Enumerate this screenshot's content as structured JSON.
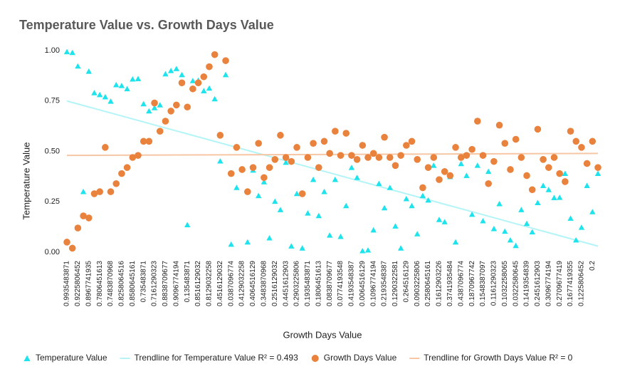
{
  "chart_data": {
    "type": "scatter",
    "title": "Temperature Value vs. Growth Days Value",
    "x_label": "Growth Days Value",
    "y_label": "Temperature Value",
    "categories": [
      "0.9935483871",
      null,
      "0.9225806452",
      null,
      "0.8967741935",
      null,
      "0.7806451613",
      null,
      "0.7483870968",
      null,
      "0.8258064516",
      null,
      "0.8580645161",
      null,
      "0.735483871",
      null,
      "0.7161290323",
      null,
      "0.8838709677",
      null,
      "0.9096774194",
      null,
      "0.135483871",
      null,
      "0.8516129032",
      null,
      "0.8129032258",
      null,
      "0.4516129032",
      null,
      "0.0387096774",
      null,
      "0.4129032258",
      null,
      "0.4064516129",
      null,
      "0.3483870968",
      null,
      "0.2516129032",
      null,
      "0.4451612903",
      null,
      "0.2903225806",
      null,
      "0.1935483871",
      null,
      "0.1806451613",
      null,
      "0.0838709677",
      null,
      "0.0774193548",
      null,
      "0.4193548387",
      null,
      "0.0064516129",
      null,
      "0.1096774194",
      null,
      "0.2193548387",
      null,
      "0.1290322581",
      null,
      "0.264516129",
      null,
      "0.0903225806",
      null,
      "0.2580645161",
      null,
      "0.1612903226",
      null,
      "0.3741935484",
      null,
      "0.4387096774",
      null,
      "0.1870967742",
      null,
      "0.1548387097",
      null,
      "0.1161290323",
      null,
      "0.1032258065",
      null,
      "0.0322580645",
      null,
      "0.1419354839",
      null,
      "0.2451612903",
      null,
      "0.3096774194",
      null,
      "0.2709677419",
      null,
      "0.1677419355",
      null,
      "0.1225806452",
      null,
      "0.2",
      null
    ],
    "series": [
      {
        "name": "Temperature Value",
        "color": "#1de4ec",
        "marker": "triangle",
        "values": [
          0.9935483871,
          0.99,
          0.9225806452,
          0.3,
          0.8967741935,
          0.79,
          0.7806451613,
          0.77,
          0.7483870968,
          0.83,
          0.8258064516,
          0.81,
          0.8580645161,
          0.86,
          0.735483871,
          0.7,
          0.7161290323,
          0.73,
          0.8838709677,
          0.9,
          0.9096774194,
          0.88,
          0.135483871,
          0.85,
          0.8516129032,
          0.8,
          0.8129032258,
          0.76,
          0.4516129032,
          0.88,
          0.0387096774,
          0.32,
          0.4129032258,
          0.05,
          0.4064516129,
          0.28,
          0.3483870968,
          0.07,
          0.2516129032,
          0.21,
          0.4451612903,
          0.03,
          0.2903225806,
          0.02,
          0.1935483871,
          0.36,
          0.1806451613,
          0.3,
          0.0838709677,
          0.36,
          0.0774193548,
          0.23,
          0.4193548387,
          0.37,
          0.0064516129,
          0.01,
          0.1096774194,
          0.34,
          0.2193548387,
          0.32,
          0.1290322581,
          0.02,
          0.264516129,
          0.23,
          0.0903225806,
          0.28,
          0.2580645161,
          0.43,
          0.1612903226,
          0.15,
          0.3741935484,
          0.05,
          0.4387096774,
          0.38,
          0.1870967742,
          0.43,
          0.1548387097,
          0.4,
          0.1161290323,
          0.24,
          0.1032258065,
          0.06,
          0.0322580645,
          0.21,
          0.1419354839,
          0.1,
          0.2451612903,
          0.33,
          0.3096774194,
          0.27,
          0.2709677419,
          0.39,
          0.1677419355,
          0.06,
          0.1225806452,
          0.33,
          0.2,
          0.39
        ],
        "trendline": {
          "name": "Trendline for Temperature Value R² = 0.493",
          "color": "#b3f4f7",
          "values": [
            0.75,
            0.03
          ]
        }
      },
      {
        "name": "Growth Days Value",
        "color": "#e9823c",
        "marker": "circle",
        "values": [
          0.05,
          0.02,
          0.12,
          0.18,
          0.17,
          0.29,
          0.3,
          0.52,
          0.3,
          0.34,
          0.39,
          0.42,
          0.47,
          0.48,
          0.55,
          0.55,
          0.74,
          0.6,
          0.65,
          0.7,
          0.73,
          0.84,
          0.72,
          0.81,
          0.84,
          0.87,
          0.92,
          0.98,
          0.58,
          0.95,
          0.39,
          0.52,
          0.41,
          0.3,
          0.42,
          0.54,
          0.37,
          0.42,
          0.46,
          0.58,
          0.47,
          0.45,
          0.52,
          0.29,
          0.47,
          0.54,
          0.42,
          0.55,
          0.49,
          0.6,
          0.48,
          0.59,
          0.48,
          0.46,
          0.53,
          0.47,
          0.49,
          0.47,
          0.57,
          0.47,
          0.43,
          0.48,
          0.53,
          0.55,
          0.46,
          0.32,
          0.42,
          0.47,
          0.36,
          0.4,
          0.38,
          0.52,
          0.47,
          0.48,
          0.51,
          0.65,
          0.48,
          0.34,
          0.45,
          0.63,
          0.54,
          0.41,
          0.56,
          0.47,
          0.38,
          0.31,
          0.61,
          0.46,
          0.42,
          0.47,
          0.39,
          0.35,
          0.6,
          0.55,
          0.52,
          0.44,
          0.55,
          0.42
        ],
        "trendline": {
          "name": "Trendline for Growth Days Value R² = 0",
          "color": "#f6c6a5",
          "values": [
            0.48,
            0.49
          ]
        }
      }
    ],
    "ylim": [
      0,
      1
    ],
    "yticks": [
      {
        "value": 0,
        "label": "0.00"
      },
      0.25,
      {
        "value": 0.5,
        "label": "0.50"
      },
      0.75,
      {
        "value": 1,
        "label": "1.00"
      }
    ],
    "grid": false
  }
}
